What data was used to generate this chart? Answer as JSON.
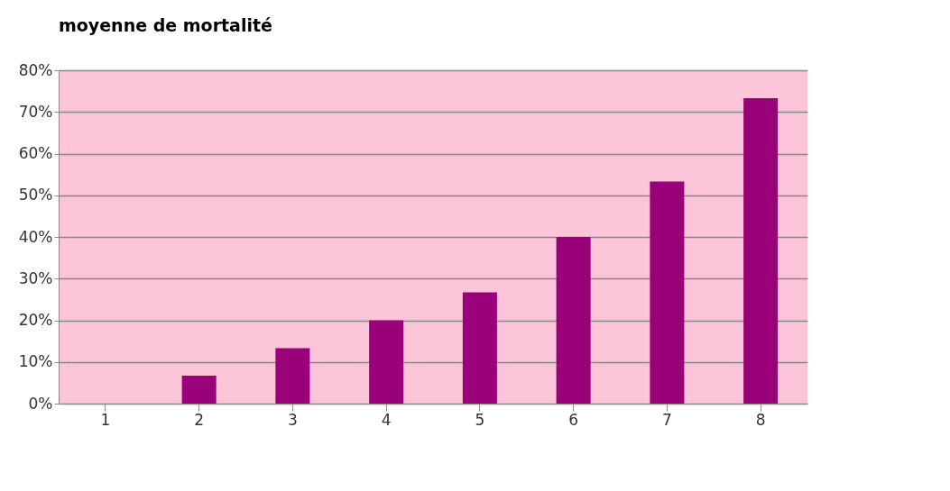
{
  "chart_data": {
    "type": "bar",
    "title": "moyenne de mortalité",
    "categories": [
      "1",
      "2",
      "3",
      "4",
      "5",
      "6",
      "7",
      "8"
    ],
    "values": [
      0,
      6.7,
      13.3,
      20,
      26.7,
      40,
      53.3,
      73.3
    ],
    "color": "#99007a",
    "ylim": [
      0,
      80
    ],
    "yticks": [
      {
        "value": 0,
        "label": "0%"
      },
      {
        "value": 10,
        "label": "10%"
      },
      {
        "value": 20,
        "label": "20%"
      },
      {
        "value": 30,
        "label": "30%"
      },
      {
        "value": 40,
        "label": "40%"
      },
      {
        "value": 50,
        "label": "50%"
      },
      {
        "value": 60,
        "label": "60%"
      },
      {
        "value": 70,
        "label": "70%"
      },
      {
        "value": 80,
        "label": "80%"
      }
    ],
    "grid": "y"
  }
}
